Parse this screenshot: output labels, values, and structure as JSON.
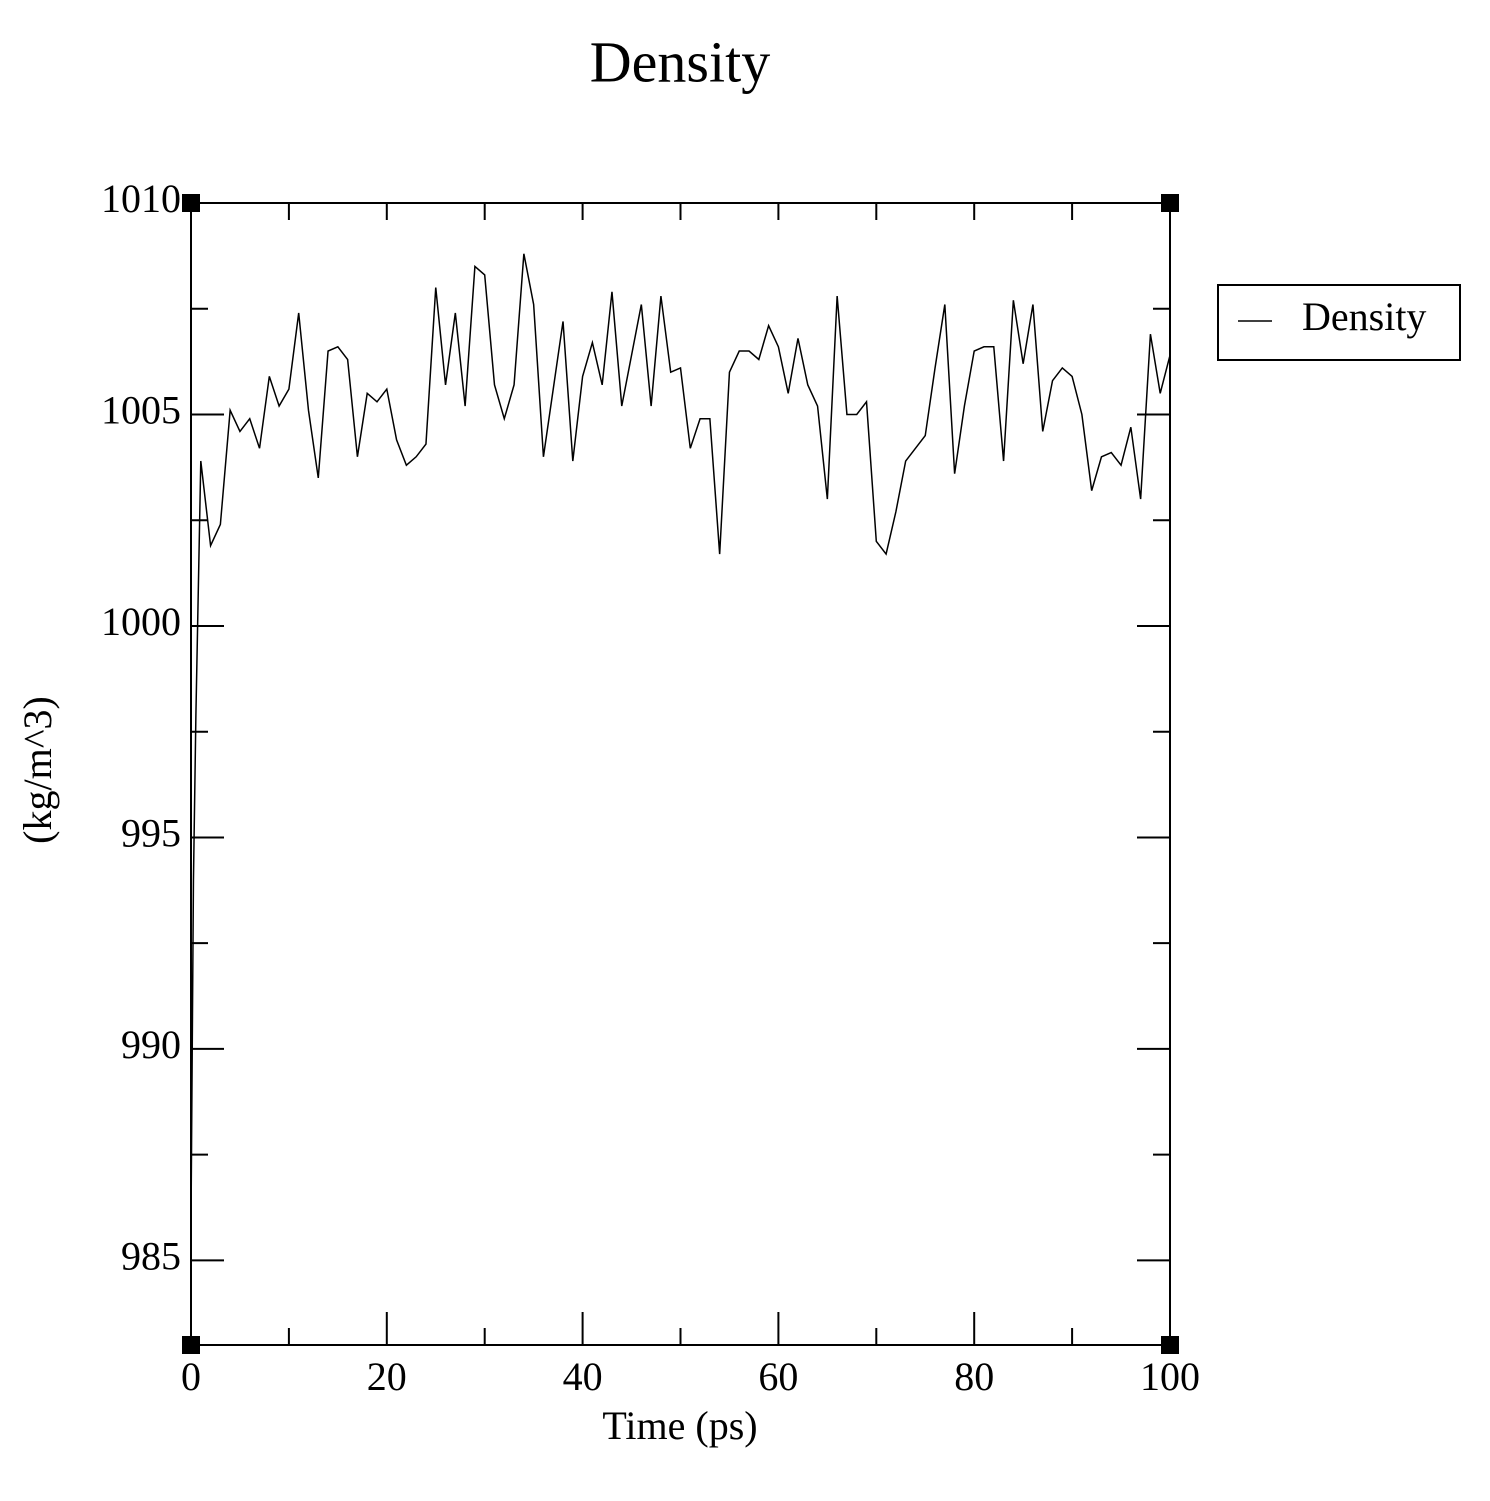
{
  "chart_data": {
    "type": "line",
    "title": "Density",
    "x_label": "Time (ps)",
    "y_label": "(kg/m^3)",
    "x": [
      0,
      0.25,
      0.5,
      1,
      2,
      3,
      4,
      5,
      6,
      7,
      8,
      9,
      10,
      11,
      12,
      13,
      14,
      15,
      16,
      17,
      18,
      19,
      20,
      21,
      22,
      23,
      24,
      25,
      26,
      27,
      28,
      29,
      30,
      31,
      32,
      33,
      34,
      35,
      36,
      37,
      38,
      39,
      40,
      41,
      42,
      43,
      44,
      45,
      46,
      47,
      48,
      49,
      50,
      51,
      52,
      53,
      54,
      55,
      56,
      57,
      58,
      59,
      60,
      61,
      62,
      63,
      64,
      65,
      66,
      67,
      68,
      69,
      70,
      71,
      72,
      73,
      74,
      75,
      76,
      77,
      78,
      79,
      80,
      81,
      82,
      83,
      84,
      85,
      86,
      87,
      88,
      89,
      90,
      91,
      92,
      93,
      94,
      95,
      96,
      97,
      98,
      99,
      100
    ],
    "series": [
      {
        "name": "Density",
        "color": "#000000",
        "values": [
          985.9,
          994.0,
          997.9,
          1003.9,
          1001.9,
          1002.4,
          1005.1,
          1004.6,
          1004.9,
          1004.2,
          1005.9,
          1005.2,
          1005.6,
          1007.4,
          1005.1,
          1003.5,
          1006.5,
          1006.6,
          1006.3,
          1004.0,
          1005.5,
          1005.3,
          1005.6,
          1004.4,
          1003.8,
          1004.0,
          1004.3,
          1008.0,
          1005.7,
          1007.4,
          1005.2,
          1008.5,
          1008.3,
          1005.7,
          1004.9,
          1005.7,
          1008.8,
          1007.6,
          1004.0,
          1005.6,
          1007.2,
          1003.9,
          1005.9,
          1006.7,
          1005.7,
          1007.9,
          1005.2,
          1006.4,
          1007.6,
          1005.2,
          1007.8,
          1006.0,
          1006.1,
          1004.2,
          1004.9,
          1004.9,
          1001.7,
          1006.0,
          1006.5,
          1006.5,
          1006.3,
          1007.1,
          1006.6,
          1005.5,
          1006.8,
          1005.7,
          1005.2,
          1003.0,
          1007.8,
          1005.0,
          1005.0,
          1005.3,
          1002.0,
          1001.7,
          1002.7,
          1003.9,
          1004.2,
          1004.5,
          1006.1,
          1007.6,
          1003.6,
          1005.2,
          1006.5,
          1006.6,
          1006.6,
          1003.9,
          1007.7,
          1006.2,
          1007.6,
          1004.6,
          1005.8,
          1006.1,
          1005.9,
          1005.0,
          1003.2,
          1004.0,
          1004.1,
          1003.8,
          1004.7,
          1003.0,
          1006.9,
          1005.5,
          1006.4
        ]
      }
    ],
    "xlim": [
      0,
      100
    ],
    "xticks": [
      0,
      20,
      40,
      60,
      80,
      100
    ],
    "xminorticks": [
      10,
      30,
      50,
      70,
      90
    ],
    "ylim": [
      983,
      1010
    ],
    "yticks": [
      985,
      990,
      995,
      1000,
      1005,
      1010
    ],
    "yminorticks": [
      987.5,
      992.5,
      997.5,
      1002.5,
      1007.5
    ],
    "legend": "right"
  }
}
